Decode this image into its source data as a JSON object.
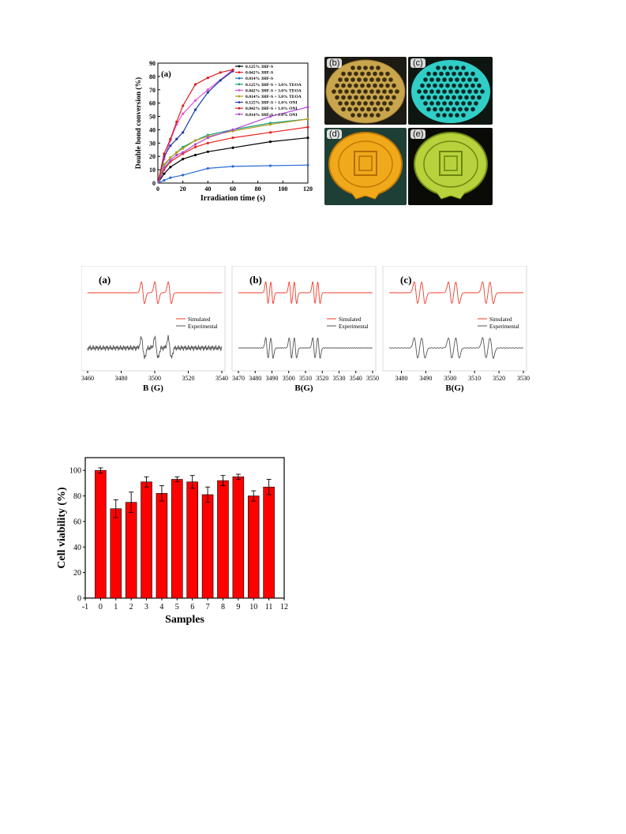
{
  "colors": {
    "series": [
      "#000000",
      "#e8211c",
      "#2c6bd6",
      "#15a07e",
      "#e64fd0",
      "#b89b1d",
      "#1a3fa6",
      "#d81e1e",
      "#b047d6"
    ],
    "simulated": "#ef3b2a",
    "experimental": "#555555",
    "bar": "#ff0000",
    "photo_b": "#c8a24a",
    "photo_c": "#2ec8c2",
    "photo_d": "#e29a10",
    "photo_e": "#b8d43a"
  },
  "figure1": {
    "panel_label": "(a)",
    "photo_labels": [
      "(b)",
      "(c)",
      "(d)",
      "(e)"
    ],
    "chart_data": {
      "type": "line",
      "xlabel": "Irradiation time (s)",
      "ylabel": "Double bond conversion (%)",
      "xlim": [
        0,
        120
      ],
      "ylim": [
        0,
        90
      ],
      "xticks": [
        0,
        20,
        40,
        60,
        80,
        100,
        120
      ],
      "yticks": [
        0,
        10,
        20,
        30,
        40,
        50,
        60,
        70,
        80,
        90
      ],
      "legend_position": "top-right",
      "series": [
        {
          "name": "0.125% 3HF-S",
          "x": [
            0,
            5,
            10,
            20,
            30,
            40,
            60,
            90,
            120
          ],
          "y": [
            0,
            7,
            12,
            18,
            21,
            23.5,
            26.5,
            31,
            34
          ]
        },
        {
          "name": "0.042% 3HF-S",
          "x": [
            0,
            5,
            10,
            20,
            30,
            40,
            60,
            90,
            120
          ],
          "y": [
            0,
            10,
            16,
            22,
            27,
            30,
            34,
            38,
            42
          ]
        },
        {
          "name": "0.014% 3HF-S",
          "x": [
            0,
            5,
            10,
            20,
            40,
            60,
            90,
            120
          ],
          "y": [
            0,
            2,
            4,
            6,
            11,
            12.5,
            13,
            13.5
          ]
        },
        {
          "name": "0.125% 3HF-S + 3.0% TEOA",
          "x": [
            0,
            5,
            10,
            15,
            20,
            30,
            40,
            60,
            90,
            120
          ],
          "y": [
            0,
            13,
            19,
            23,
            27,
            32,
            36,
            40,
            45,
            48
          ]
        },
        {
          "name": "0.042% 3HF-S + 3.0% TEOA",
          "x": [
            0,
            5,
            10,
            15,
            20,
            30,
            40,
            60
          ],
          "y": [
            0,
            18,
            32,
            44,
            52,
            62,
            70,
            85
          ]
        },
        {
          "name": "0.014% 3HF-S + 3.0% TEOA",
          "x": [
            0,
            5,
            10,
            15,
            20,
            30,
            40,
            60,
            90,
            120
          ],
          "y": [
            0,
            14,
            19,
            23,
            26,
            32,
            35,
            39,
            44,
            48
          ]
        },
        {
          "name": "0.125% 3HF-S + 1.0% ONI",
          "x": [
            0,
            5,
            10,
            15,
            20,
            30,
            40,
            50,
            60
          ],
          "y": [
            0,
            20,
            28,
            33,
            38,
            55,
            68,
            77,
            84
          ]
        },
        {
          "name": "0.042% 3HF-S + 1.0% ONI",
          "x": [
            0,
            5,
            10,
            15,
            20,
            30,
            40,
            50,
            60
          ],
          "y": [
            0,
            22,
            33,
            46,
            58,
            74,
            79,
            83,
            85
          ]
        },
        {
          "name": "0.014% 3HF-S + 1.0% ONI",
          "x": [
            0,
            5,
            10,
            15,
            20,
            30,
            40,
            60,
            90,
            120
          ],
          "y": [
            0,
            11,
            17,
            21,
            23,
            29,
            34,
            40,
            50,
            57
          ]
        }
      ]
    }
  },
  "figure2": {
    "legend_simulated": "Simulated",
    "legend_experimental": "Experimental",
    "chart_data": [
      {
        "type": "line",
        "panel": "(a)",
        "xlabel": "B (G)",
        "xlim": [
          3460,
          3540
        ],
        "xticks": [
          3460,
          3480,
          3500,
          3520,
          3540
        ],
        "lines": [
          3493,
          3501,
          3509
        ],
        "series": [
          {
            "name": "Simulated"
          },
          {
            "name": "Experimental"
          }
        ]
      },
      {
        "type": "line",
        "panel": "(b)",
        "xlabel": "B(G)",
        "xlim": [
          3470,
          3550
        ],
        "xticks": [
          3470,
          3480,
          3490,
          3500,
          3510,
          3520,
          3530,
          3540,
          3550
        ],
        "lines": [
          3487,
          3490,
          3501,
          3504,
          3515,
          3518
        ],
        "series": [
          {
            "name": "Simulated"
          },
          {
            "name": "Experimental"
          }
        ]
      },
      {
        "type": "line",
        "panel": "(c)",
        "xlabel": "B(G)",
        "xlim": [
          3475,
          3530
        ],
        "xticks": [
          3480,
          3490,
          3500,
          3510,
          3520,
          3530
        ],
        "lines": [
          3486,
          3489,
          3500,
          3503,
          3514,
          3517
        ],
        "series": [
          {
            "name": "Simulated"
          },
          {
            "name": "Experimental"
          }
        ]
      }
    ]
  },
  "figure3": {
    "chart_data": {
      "type": "bar",
      "xlabel": "Samples",
      "ylabel": "Cell viability (%)",
      "xlim": [
        -1,
        12
      ],
      "ylim": [
        0,
        110
      ],
      "xticks": [
        -1,
        0,
        1,
        2,
        3,
        4,
        5,
        6,
        7,
        8,
        9,
        10,
        11,
        12
      ],
      "yticks": [
        0,
        20,
        40,
        60,
        80,
        100
      ],
      "categories": [
        0,
        1,
        2,
        3,
        4,
        5,
        6,
        7,
        8,
        9,
        10,
        11
      ],
      "values": [
        100,
        70,
        75,
        91,
        82,
        93,
        91,
        81,
        92,
        95,
        80,
        87
      ],
      "errors": [
        2,
        7,
        8,
        4,
        6,
        2,
        5,
        6,
        4,
        2,
        4,
        6
      ]
    }
  }
}
